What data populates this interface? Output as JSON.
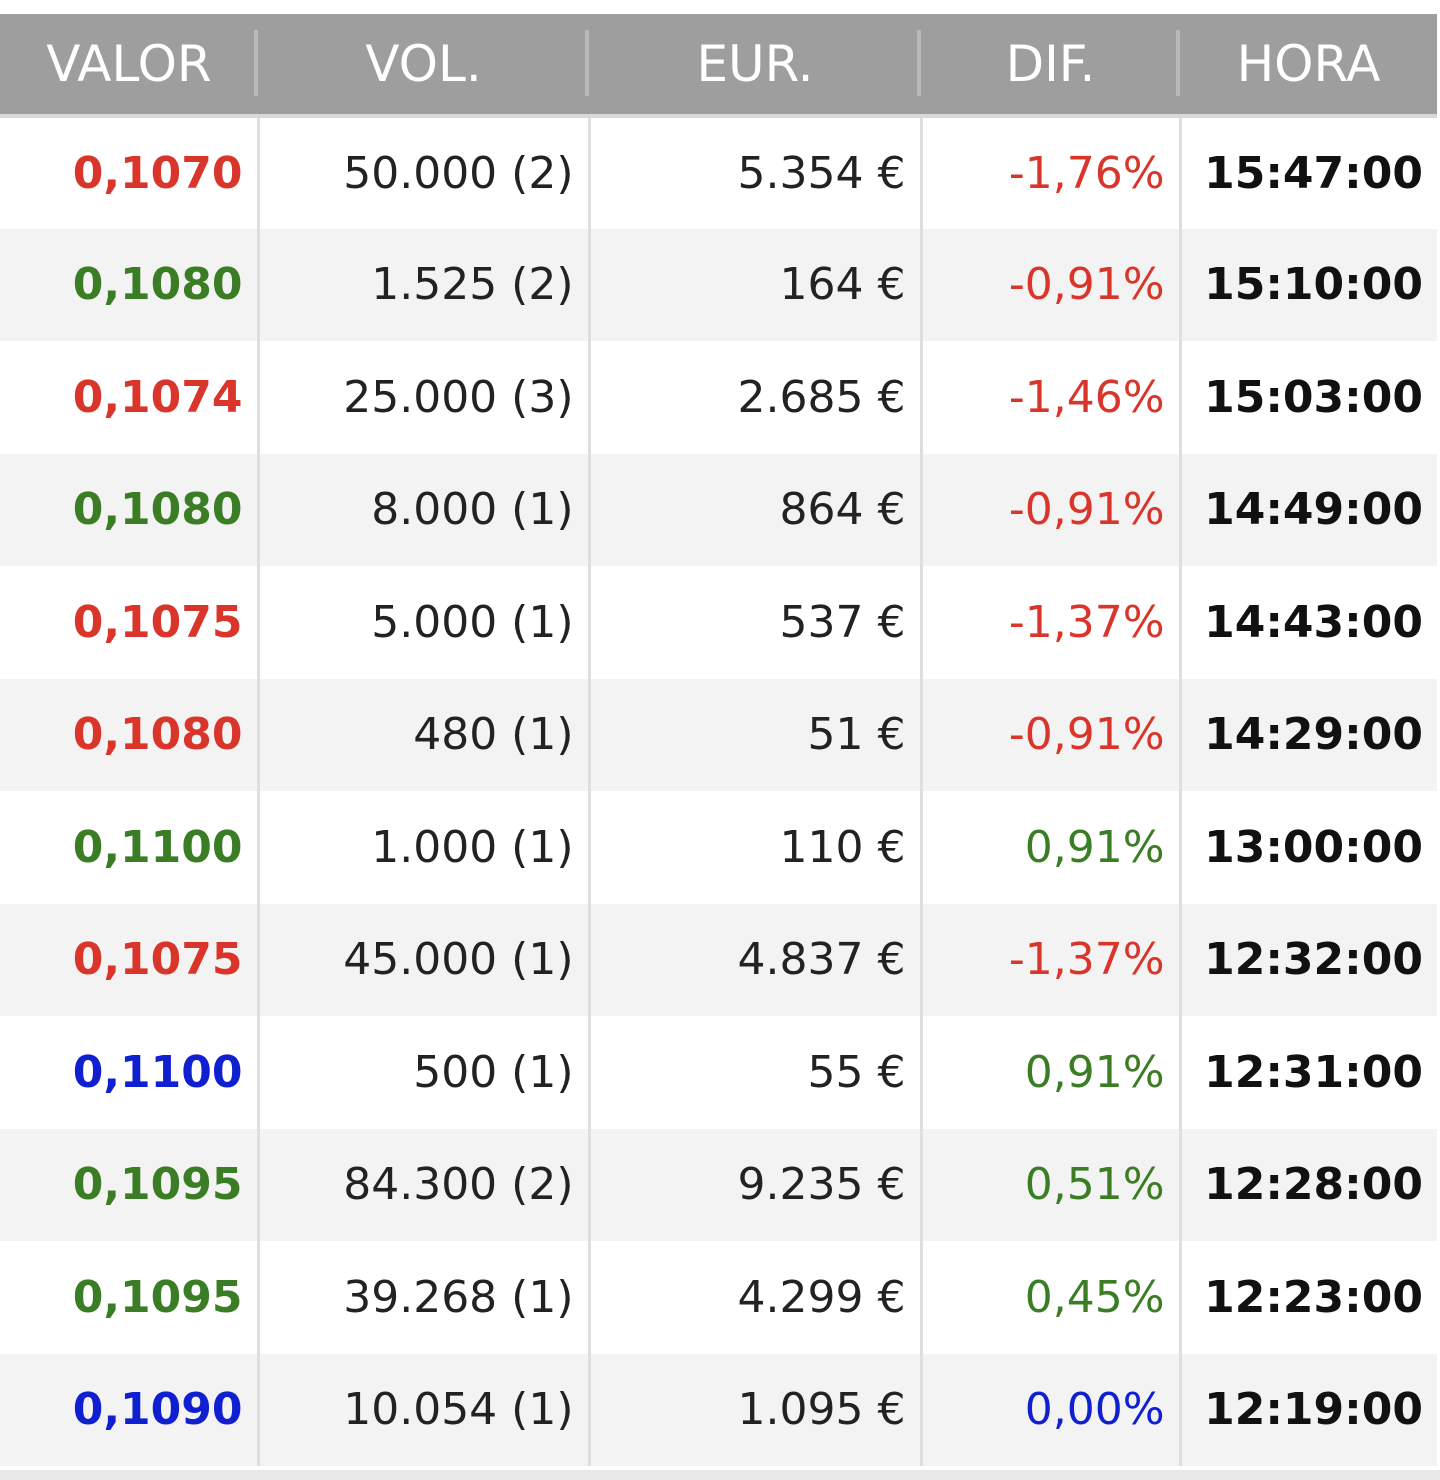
{
  "table": {
    "headers": [
      "VALOR",
      "VOL.",
      "EUR.",
      "DIF.",
      "HORA"
    ],
    "rows": [
      {
        "valor": "0,1070",
        "valor_color": "#d9352b",
        "vol": "50.000 (2)",
        "eur": "5.354 €",
        "dif": "-1,76%",
        "dif_color": "#d9352b",
        "hora": "15:47:00"
      },
      {
        "valor": "0,1080",
        "valor_color": "#3a7d24",
        "vol": "1.525 (2)",
        "eur": "164 €",
        "dif": "-0,91%",
        "dif_color": "#d9352b",
        "hora": "15:10:00"
      },
      {
        "valor": "0,1074",
        "valor_color": "#d9352b",
        "vol": "25.000 (3)",
        "eur": "2.685 €",
        "dif": "-1,46%",
        "dif_color": "#d9352b",
        "hora": "15:03:00"
      },
      {
        "valor": "0,1080",
        "valor_color": "#3a7d24",
        "vol": "8.000 (1)",
        "eur": "864 €",
        "dif": "-0,91%",
        "dif_color": "#d9352b",
        "hora": "14:49:00"
      },
      {
        "valor": "0,1075",
        "valor_color": "#d9352b",
        "vol": "5.000 (1)",
        "eur": "537 €",
        "dif": "-1,37%",
        "dif_color": "#d9352b",
        "hora": "14:43:00"
      },
      {
        "valor": "0,1080",
        "valor_color": "#d9352b",
        "vol": "480 (1)",
        "eur": "51 €",
        "dif": "-0,91%",
        "dif_color": "#d9352b",
        "hora": "14:29:00"
      },
      {
        "valor": "0,1100",
        "valor_color": "#3a7d24",
        "vol": "1.000 (1)",
        "eur": "110 €",
        "dif": "0,91%",
        "dif_color": "#3a7d24",
        "hora": "13:00:00"
      },
      {
        "valor": "0,1075",
        "valor_color": "#d9352b",
        "vol": "45.000 (1)",
        "eur": "4.837 €",
        "dif": "-1,37%",
        "dif_color": "#d9352b",
        "hora": "12:32:00"
      },
      {
        "valor": "0,1100",
        "valor_color": "#1020d0",
        "vol": "500 (1)",
        "eur": "55 €",
        "dif": "0,91%",
        "dif_color": "#3a7d24",
        "hora": "12:31:00"
      },
      {
        "valor": "0,1095",
        "valor_color": "#3a7d24",
        "vol": "84.300 (2)",
        "eur": "9.235 €",
        "dif": "0,51%",
        "dif_color": "#3a7d24",
        "hora": "12:28:00"
      },
      {
        "valor": "0,1095",
        "valor_color": "#3a7d24",
        "vol": "39.268 (1)",
        "eur": "4.299 €",
        "dif": "0,45%",
        "dif_color": "#3a7d24",
        "hora": "12:23:00"
      },
      {
        "valor": "0,1090",
        "valor_color": "#1020d0",
        "vol": "10.054 (1)",
        "eur": "1.095 €",
        "dif": "0,00%",
        "dif_color": "#1020d0",
        "hora": "12:19:00"
      }
    ]
  }
}
